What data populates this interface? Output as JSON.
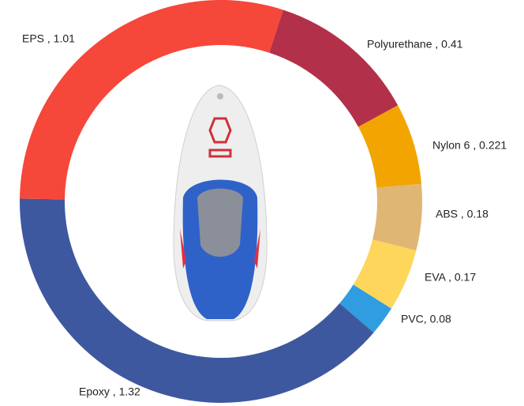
{
  "chart_data": {
    "type": "donut",
    "labels": [
      "Polyurethane , 0.41",
      "Nylon 6 , 0.221",
      "ABS , 0.18",
      "EVA , 0.17",
      "PVC, 0.08",
      "Epoxy , 1.32",
      "EPS , 1.01"
    ],
    "values": [
      0.41,
      0.221,
      0.18,
      0.17,
      0.08,
      1.32,
      1.01
    ],
    "colors": [
      "#b3304a",
      "#f2a500",
      "#dfb674",
      "#fdd65b",
      "#2f9de0",
      "#3e589f",
      "#f5473a"
    ]
  }
}
